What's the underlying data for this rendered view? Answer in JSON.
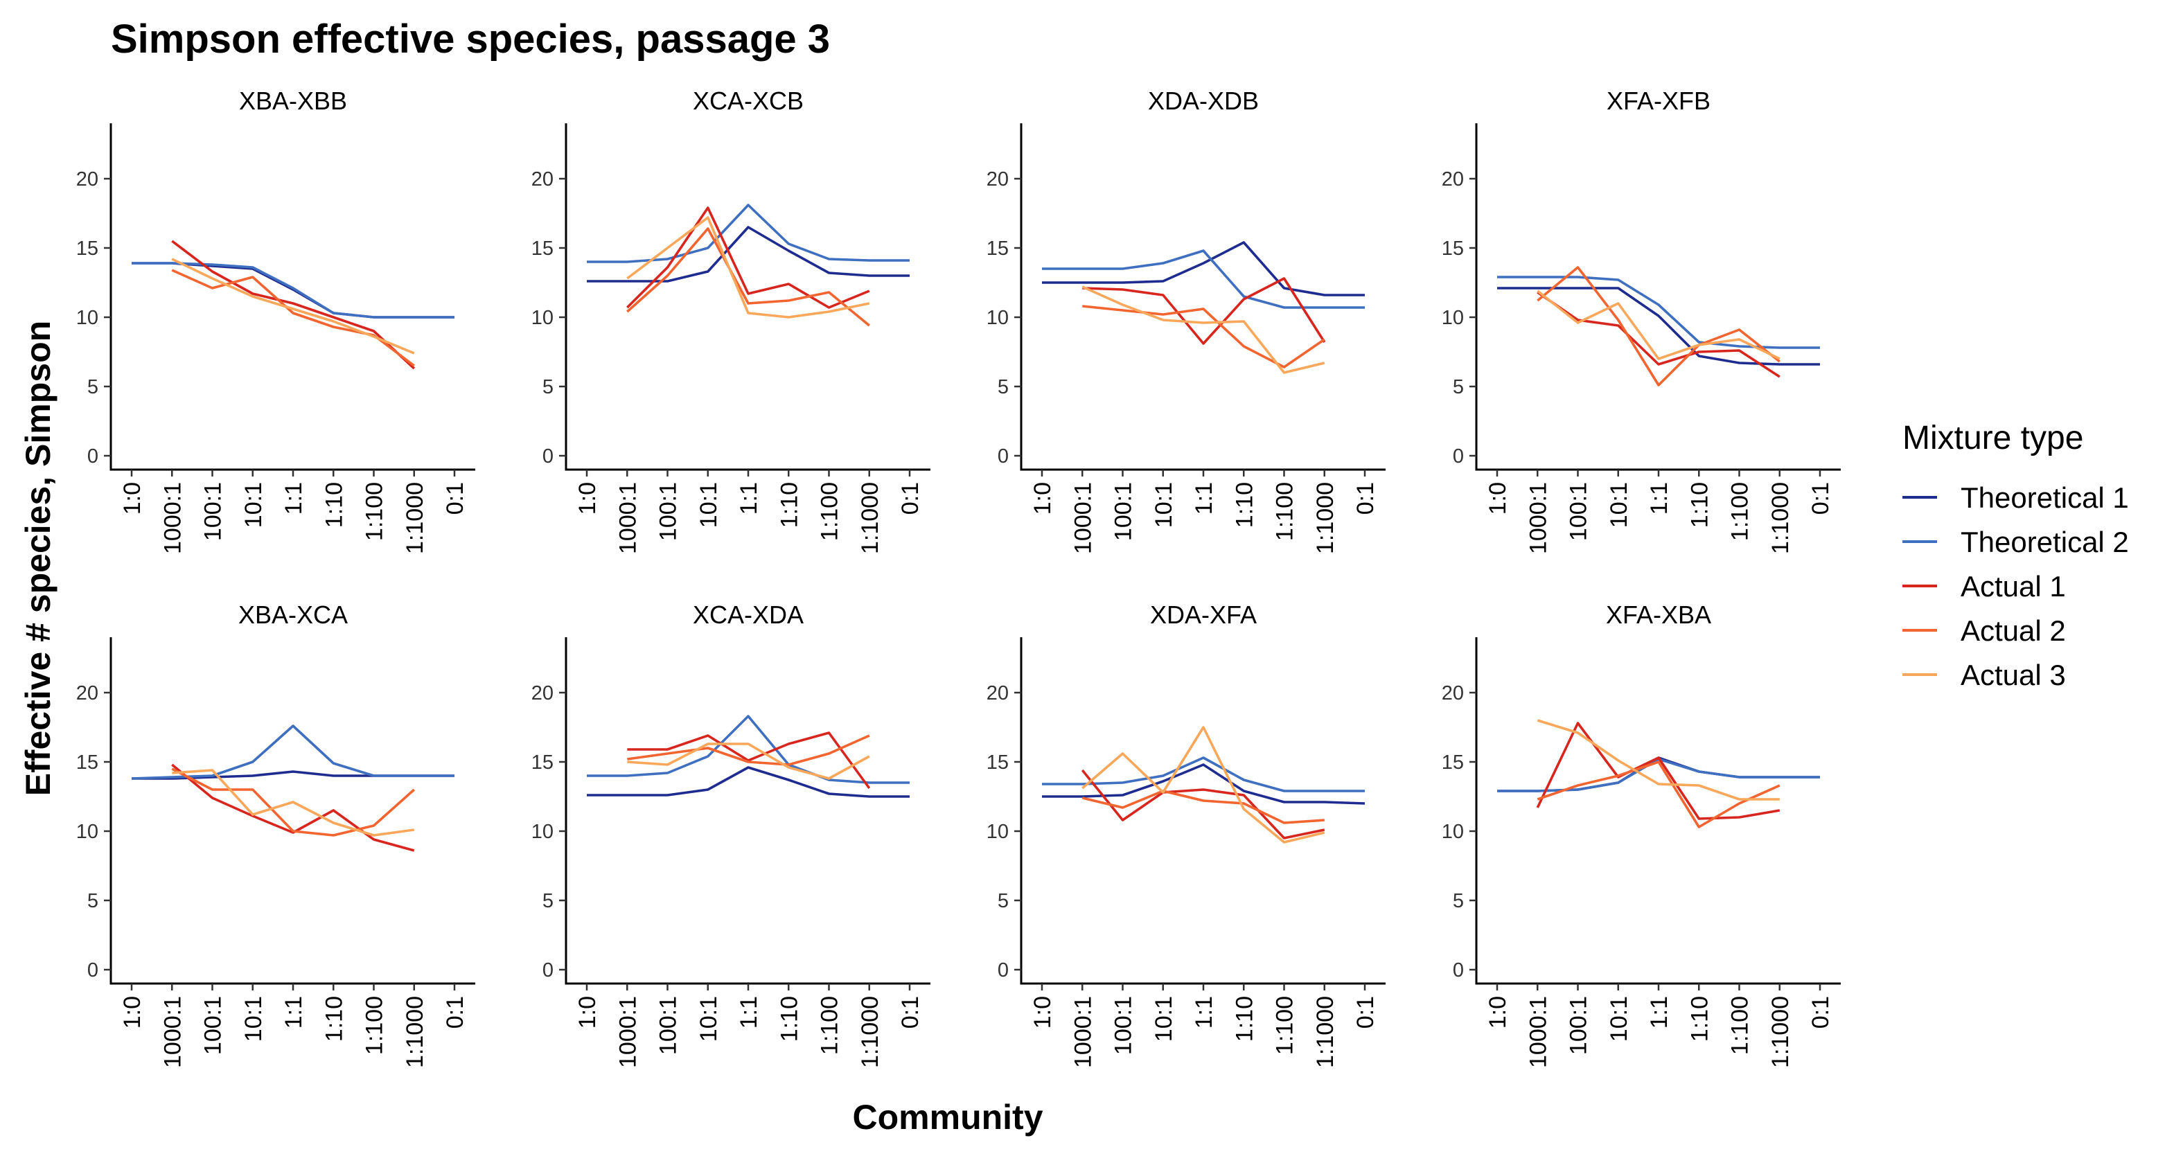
{
  "chart_data": {
    "type": "line",
    "title": "Simpson effective species, passage 3",
    "xlabel": "Community",
    "ylabel": "Effective # species, Simpson",
    "categories": [
      "1:0",
      "1000:1",
      "100:1",
      "10:1",
      "1:1",
      "1:10",
      "1:100",
      "1:1000",
      "0:1"
    ],
    "ylim": [
      -1,
      24
    ],
    "yticks": [
      0,
      5,
      10,
      15,
      20
    ],
    "grid": false,
    "legend": {
      "title": "Mixture type",
      "placement": "right",
      "entries": [
        "Theoretical 1",
        "Theoretical 2",
        "Actual 1",
        "Actual 2",
        "Actual 3"
      ]
    },
    "colors": {
      "Theoretical 1": "#1f2c8f",
      "Theoretical 2": "#3f6fbf",
      "Actual 1": "#d7261e",
      "Actual 2": "#f26530",
      "Actual 3": "#f9a75a"
    },
    "panels": [
      {
        "title": "XBA-XBB",
        "series": [
          {
            "name": "Theoretical 1",
            "values": [
              13.9,
              13.9,
              13.7,
              13.5,
              12.0,
              10.3,
              10.0,
              10.0,
              10.0
            ]
          },
          {
            "name": "Theoretical 2",
            "values": [
              13.9,
              13.9,
              13.8,
              13.6,
              12.1,
              10.3,
              10.0,
              10.0,
              10.0
            ]
          },
          {
            "name": "Actual 1",
            "values": [
              null,
              15.5,
              13.3,
              11.7,
              11.0,
              10.0,
              9.0,
              6.3,
              null
            ]
          },
          {
            "name": "Actual 2",
            "values": [
              null,
              13.4,
              12.1,
              12.9,
              10.3,
              9.3,
              8.7,
              6.5,
              null
            ]
          },
          {
            "name": "Actual 3",
            "values": [
              null,
              14.2,
              12.8,
              11.5,
              10.6,
              9.7,
              8.6,
              7.4,
              null
            ]
          }
        ]
      },
      {
        "title": "XCA-XCB",
        "series": [
          {
            "name": "Theoretical 1",
            "values": [
              12.6,
              12.6,
              12.6,
              13.3,
              16.5,
              14.8,
              13.2,
              13.0,
              13.0
            ]
          },
          {
            "name": "Theoretical 2",
            "values": [
              14.0,
              14.0,
              14.2,
              15.0,
              18.1,
              15.3,
              14.2,
              14.1,
              14.1
            ]
          },
          {
            "name": "Actual 1",
            "values": [
              null,
              10.7,
              13.6,
              17.9,
              11.7,
              12.4,
              10.7,
              11.9,
              null
            ]
          },
          {
            "name": "Actual 2",
            "values": [
              null,
              10.4,
              13.0,
              16.4,
              11.0,
              11.2,
              11.8,
              9.4,
              null
            ]
          },
          {
            "name": "Actual 3",
            "values": [
              null,
              12.8,
              15.0,
              17.2,
              10.3,
              10.0,
              10.4,
              11.0,
              null
            ]
          }
        ]
      },
      {
        "title": "XDA-XDB",
        "series": [
          {
            "name": "Theoretical 1",
            "values": [
              12.5,
              12.5,
              12.5,
              12.6,
              13.9,
              15.4,
              12.1,
              11.6,
              11.6
            ]
          },
          {
            "name": "Theoretical 2",
            "values": [
              13.5,
              13.5,
              13.5,
              13.9,
              14.8,
              11.5,
              10.7,
              10.7,
              10.7
            ]
          },
          {
            "name": "Actual 1",
            "values": [
              null,
              12.1,
              12.0,
              11.6,
              8.1,
              11.3,
              12.8,
              8.2,
              null
            ]
          },
          {
            "name": "Actual 2",
            "values": [
              null,
              10.8,
              10.5,
              10.2,
              10.6,
              7.9,
              6.4,
              8.4,
              null
            ]
          },
          {
            "name": "Actual 3",
            "values": [
              null,
              12.2,
              10.9,
              9.8,
              9.6,
              9.7,
              6.0,
              6.7,
              null
            ]
          }
        ]
      },
      {
        "title": "XFA-XFB",
        "series": [
          {
            "name": "Theoretical 1",
            "values": [
              12.1,
              12.1,
              12.1,
              12.1,
              10.1,
              7.2,
              6.7,
              6.6,
              6.6
            ]
          },
          {
            "name": "Theoretical 2",
            "values": [
              12.9,
              12.9,
              12.9,
              12.7,
              10.9,
              8.2,
              7.9,
              7.8,
              7.8
            ]
          },
          {
            "name": "Actual 1",
            "values": [
              null,
              11.8,
              9.8,
              9.4,
              6.6,
              7.5,
              7.6,
              5.7,
              null
            ]
          },
          {
            "name": "Actual 2",
            "values": [
              null,
              11.2,
              13.6,
              9.8,
              5.1,
              8.0,
              9.1,
              6.8,
              null
            ]
          },
          {
            "name": "Actual 3",
            "values": [
              null,
              11.9,
              9.6,
              11.0,
              7.0,
              8.0,
              8.4,
              7.0,
              null
            ]
          }
        ]
      },
      {
        "title": "XBA-XCA",
        "series": [
          {
            "name": "Theoretical 1",
            "values": [
              13.8,
              13.8,
              13.9,
              14.0,
              14.3,
              14.0,
              14.0,
              14.0,
              14.0
            ]
          },
          {
            "name": "Theoretical 2",
            "values": [
              13.8,
              13.9,
              14.0,
              15.0,
              17.6,
              14.9,
              14.0,
              14.0,
              14.0
            ]
          },
          {
            "name": "Actual 1",
            "values": [
              null,
              14.8,
              12.4,
              11.1,
              9.9,
              11.5,
              9.4,
              8.6,
              null
            ]
          },
          {
            "name": "Actual 2",
            "values": [
              null,
              14.5,
              13.0,
              13.0,
              10.0,
              9.7,
              10.4,
              13.0,
              null
            ]
          },
          {
            "name": "Actual 3",
            "values": [
              null,
              14.2,
              14.4,
              11.2,
              12.1,
              10.6,
              9.7,
              10.1,
              null
            ]
          }
        ]
      },
      {
        "title": "XCA-XDA",
        "series": [
          {
            "name": "Theoretical 1",
            "values": [
              12.6,
              12.6,
              12.6,
              13.0,
              14.6,
              13.7,
              12.7,
              12.5,
              12.5
            ]
          },
          {
            "name": "Theoretical 2",
            "values": [
              14.0,
              14.0,
              14.2,
              15.4,
              18.3,
              14.8,
              13.7,
              13.5,
              13.5
            ]
          },
          {
            "name": "Actual 1",
            "values": [
              null,
              15.9,
              15.9,
              16.9,
              15.1,
              16.3,
              17.1,
              13.1,
              null
            ]
          },
          {
            "name": "Actual 2",
            "values": [
              null,
              15.2,
              15.6,
              16.0,
              15.0,
              14.8,
              15.6,
              16.9,
              null
            ]
          },
          {
            "name": "Actual 3",
            "values": [
              null,
              15.0,
              14.8,
              16.3,
              16.3,
              14.6,
              13.8,
              15.4,
              null
            ]
          }
        ]
      },
      {
        "title": "XDA-XFA",
        "series": [
          {
            "name": "Theoretical 1",
            "values": [
              12.5,
              12.5,
              12.6,
              13.6,
              14.8,
              12.9,
              12.1,
              12.1,
              12.0
            ]
          },
          {
            "name": "Theoretical 2",
            "values": [
              13.4,
              13.4,
              13.5,
              14.0,
              15.3,
              13.7,
              12.9,
              12.9,
              12.9
            ]
          },
          {
            "name": "Actual 1",
            "values": [
              null,
              14.4,
              10.8,
              12.8,
              13.0,
              12.6,
              9.5,
              10.1,
              null
            ]
          },
          {
            "name": "Actual 2",
            "values": [
              null,
              12.4,
              11.7,
              12.9,
              12.2,
              12.0,
              10.6,
              10.8,
              null
            ]
          },
          {
            "name": "Actual 3",
            "values": [
              null,
              13.1,
              15.6,
              12.8,
              17.5,
              11.6,
              9.2,
              9.9,
              null
            ]
          }
        ]
      },
      {
        "title": "XFA-XBA",
        "series": [
          {
            "name": "Theoretical 1",
            "values": [
              12.9,
              12.9,
              13.0,
              13.5,
              15.3,
              14.3,
              13.9,
              13.9,
              13.9
            ]
          },
          {
            "name": "Theoretical 2",
            "values": [
              12.9,
              12.9,
              13.0,
              13.5,
              15.2,
              14.3,
              13.9,
              13.9,
              13.9
            ]
          },
          {
            "name": "Actual 1",
            "values": [
              null,
              11.7,
              17.8,
              13.9,
              15.3,
              10.9,
              11.0,
              11.5,
              null
            ]
          },
          {
            "name": "Actual 2",
            "values": [
              null,
              12.3,
              13.3,
              14.0,
              15.0,
              10.3,
              12.0,
              13.3,
              null
            ]
          },
          {
            "name": "Actual 3",
            "values": [
              null,
              18.0,
              17.1,
              15.1,
              13.4,
              13.3,
              12.3,
              12.3,
              null
            ]
          }
        ]
      }
    ]
  }
}
